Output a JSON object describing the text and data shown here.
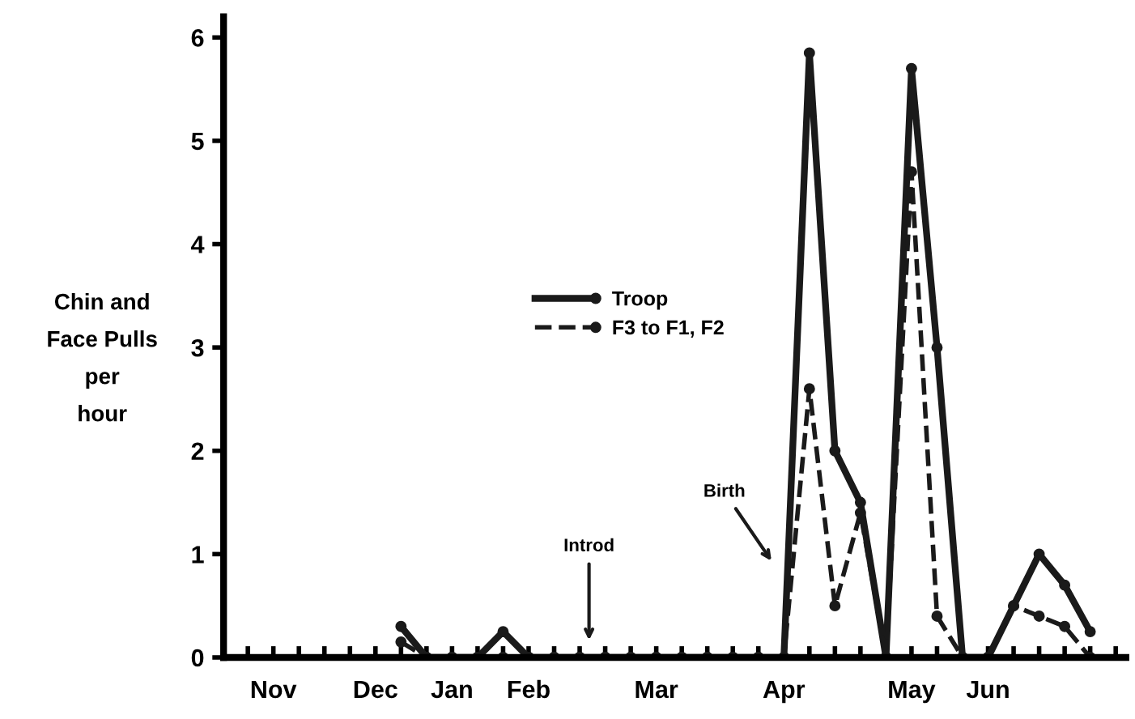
{
  "chart_data": {
    "type": "line",
    "ylabel": "Chin and\nFace Pulls\nper\nhour",
    "categories": [
      null,
      "Nov",
      null,
      null,
      null,
      "Dec",
      null,
      null,
      "Jan",
      null,
      null,
      "Feb",
      null,
      null,
      null,
      null,
      "Mar",
      null,
      null,
      null,
      null,
      "Apr",
      null,
      null,
      null,
      null,
      "May",
      null,
      null,
      "Jun",
      null,
      null,
      null,
      null,
      null
    ],
    "series": [
      {
        "name": "Troop",
        "color": "#1a1a1a",
        "line_style": "solid",
        "values": [
          null,
          null,
          null,
          null,
          null,
          null,
          0.3,
          0,
          0,
          0,
          0.25,
          0,
          0,
          0,
          0,
          0,
          0,
          0,
          0,
          0,
          0,
          0,
          5.85,
          2.0,
          1.5,
          0,
          5.7,
          3.0,
          0,
          0,
          0.5,
          1.0,
          0.7,
          0.25,
          null
        ]
      },
      {
        "name": "F3 to F1, F2",
        "color": "#1a1a1a",
        "line_style": "dashed",
        "values": [
          null,
          null,
          null,
          null,
          null,
          null,
          0.15,
          0,
          0,
          0,
          0,
          0,
          0,
          0,
          0,
          0,
          0,
          0,
          0,
          0,
          0,
          0,
          2.6,
          0.5,
          1.4,
          0,
          4.7,
          0.4,
          0,
          0,
          0.5,
          0.4,
          0.3,
          0,
          null
        ]
      }
    ],
    "ylim": [
      0,
      6.2
    ],
    "yticks": [
      0,
      1,
      2,
      3,
      4,
      5,
      6
    ],
    "annotations": [
      "Introd",
      "Birth"
    ],
    "marker": "circle",
    "grid": false,
    "legend": "center"
  }
}
